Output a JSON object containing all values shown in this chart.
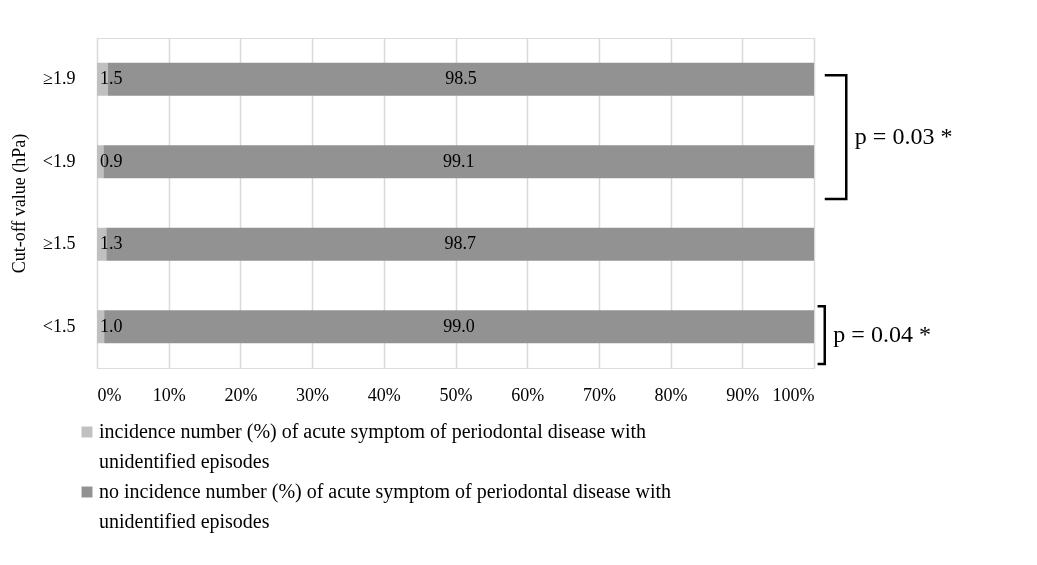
{
  "chart_data": {
    "type": "bar",
    "orientation": "horizontal",
    "stacked": true,
    "ylabel": "Cut-off value (hPa)",
    "categories": [
      "≥1.9",
      "<1.9",
      "≥1.5",
      "<1.5"
    ],
    "series": [
      {
        "name": "incidence number (%) of acute symptom of periodontal disease with unidentified  episodes",
        "color": "#c0c0c0",
        "values": [
          1.5,
          0.9,
          1.3,
          1.0
        ],
        "value_labels": [
          "1.5",
          "0.9",
          "1.3",
          "1.0"
        ]
      },
      {
        "name": "no incidence number (%) of acute symptom of periodontal disease with unidentified  episodes",
        "color": "#929292",
        "values": [
          98.5,
          99.1,
          98.7,
          99.0
        ],
        "value_labels": [
          "98.5",
          "99.1",
          "98.7",
          "99.0"
        ]
      }
    ],
    "xlim": [
      0,
      100
    ],
    "xticks": [
      {
        "value": 0,
        "label": "0%"
      },
      {
        "value": 10,
        "label": "10%"
      },
      {
        "value": 20,
        "label": "20%"
      },
      {
        "value": 30,
        "label": "30%"
      },
      {
        "value": 40,
        "label": "40%"
      },
      {
        "value": 50,
        "label": "50%"
      },
      {
        "value": 60,
        "label": "60%"
      },
      {
        "value": 70,
        "label": "70%"
      },
      {
        "value": 80,
        "label": "80%"
      },
      {
        "value": 90,
        "label": "90%"
      },
      {
        "value": 100,
        "label": "100%"
      }
    ],
    "grid": "x",
    "legend": "bottom",
    "annotations": [
      "p = 0.03 *",
      "p = 0.04 *"
    ]
  }
}
